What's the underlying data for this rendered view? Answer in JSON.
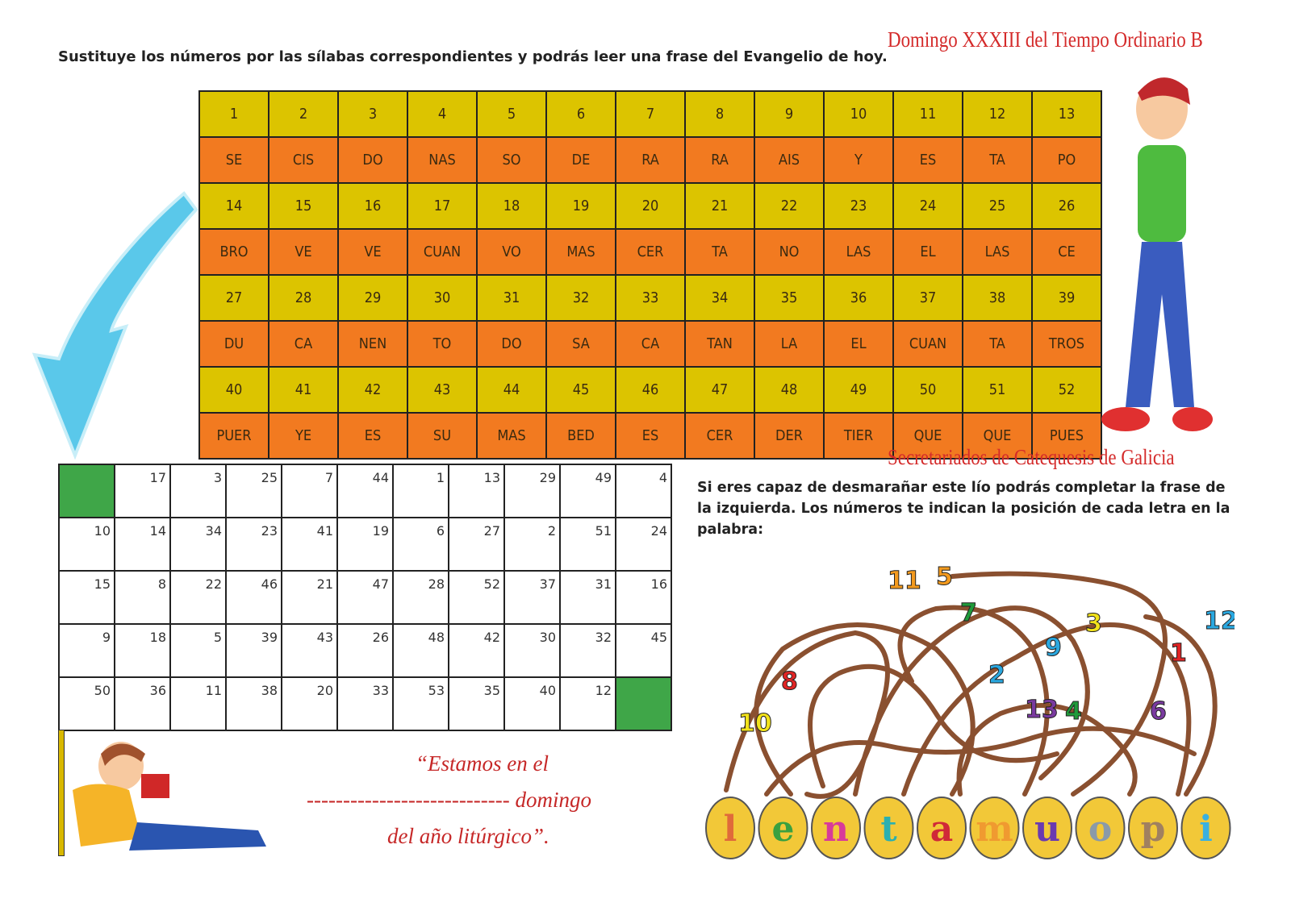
{
  "header": {
    "instruction": "Sustituye los números por las sílabas correspondientes y podrás leer una frase del Evangelio de hoy.",
    "title": "Domingo XXXIII del Tiempo Ordinario B"
  },
  "syllable_table": [
    {
      "numbers": [
        "1",
        "2",
        "3",
        "4",
        "5",
        "6",
        "7",
        "8",
        "9",
        "10",
        "11",
        "12",
        "13"
      ],
      "syllables": [
        "SE",
        "CIS",
        "DO",
        "NAS",
        "SO",
        "DE",
        "RA",
        "RA",
        "AIS",
        "Y",
        "ES",
        "TA",
        "PO"
      ]
    },
    {
      "numbers": [
        "14",
        "15",
        "16",
        "17",
        "18",
        "19",
        "20",
        "21",
        "22",
        "23",
        "24",
        "25",
        "26"
      ],
      "syllables": [
        "BRO",
        "VE",
        "VE",
        "CUAN",
        "VO",
        "MAS",
        "CER",
        "TA",
        "NO",
        "LAS",
        "EL",
        "LAS",
        "CE"
      ]
    },
    {
      "numbers": [
        "27",
        "28",
        "29",
        "30",
        "31",
        "32",
        "33",
        "34",
        "35",
        "36",
        "37",
        "38",
        "39"
      ],
      "syllables": [
        "DU",
        "CA",
        "NEN",
        "TO",
        "DO",
        "SA",
        "CA",
        "TAN",
        "LA",
        "EL",
        "CUAN",
        "TA",
        "TROS"
      ]
    },
    {
      "numbers": [
        "40",
        "41",
        "42",
        "43",
        "44",
        "45",
        "46",
        "47",
        "48",
        "49",
        "50",
        "51",
        "52"
      ],
      "syllables": [
        "PUER",
        "YE",
        "ES",
        "SU",
        "MAS",
        "BED",
        "ES",
        "CER",
        "DER",
        "TIER",
        "QUE",
        "QUE",
        "PUES"
      ]
    }
  ],
  "answer_grid": [
    [
      "",
      "17",
      "3",
      "25",
      "7",
      "44",
      "1",
      "13",
      "29",
      "49",
      "4"
    ],
    [
      "10",
      "14",
      "34",
      "23",
      "41",
      "19",
      "6",
      "27",
      "2",
      "51",
      "24"
    ],
    [
      "15",
      "8",
      "22",
      "46",
      "21",
      "47",
      "28",
      "52",
      "37",
      "31",
      "16"
    ],
    [
      "9",
      "18",
      "5",
      "39",
      "43",
      "26",
      "48",
      "42",
      "30",
      "32",
      "45"
    ],
    [
      "50",
      "36",
      "11",
      "38",
      "20",
      "33",
      "53",
      "35",
      "40",
      "12",
      ""
    ]
  ],
  "credit": "Secretariados de Catequesis de Galicia",
  "maze": {
    "instruction": "Si eres capaz de desmarañar este lío podrás completar la frase de la izquierda. Los números te indican la posición de cada letra en la palabra:",
    "letters": [
      "l",
      "e",
      "n",
      "t",
      "a",
      "m",
      "u",
      "o",
      "p",
      "i"
    ],
    "numbers": [
      {
        "n": "11",
        "color": "#f39a1e"
      },
      {
        "n": "5",
        "color": "#f39a1e"
      },
      {
        "n": "7",
        "color": "#1f9a3a"
      },
      {
        "n": "3",
        "color": "#f2e21a"
      },
      {
        "n": "12",
        "color": "#2aa8e0"
      },
      {
        "n": "9",
        "color": "#2aa8e0"
      },
      {
        "n": "1",
        "color": "#e02424"
      },
      {
        "n": "8",
        "color": "#e02424"
      },
      {
        "n": "2",
        "color": "#2aa8e0"
      },
      {
        "n": "13",
        "color": "#7a3aa0"
      },
      {
        "n": "4",
        "color": "#1f9a3a"
      },
      {
        "n": "6",
        "color": "#7a3aa0"
      },
      {
        "n": "10",
        "color": "#f2e21a"
      }
    ]
  },
  "quote": {
    "line1": "“Estamos en el",
    "blank": "----------------------------",
    "line2_end": "domingo",
    "line3": "del año litúrgico”."
  }
}
